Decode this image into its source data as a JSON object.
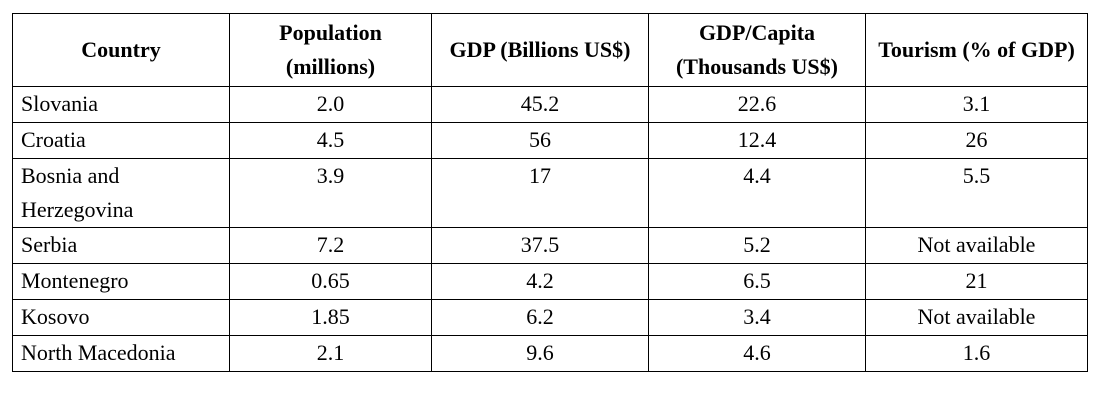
{
  "table": {
    "headers": [
      "Country",
      "Population (millions)",
      "GDP (Billions US$)",
      "GDP/Capita (Thousands US$)",
      "Tourism (% of GDP)"
    ],
    "rows": [
      [
        "Slovania",
        "2.0",
        "45.2",
        "22.6",
        "3.1"
      ],
      [
        "Croatia",
        "4.5",
        "56",
        "12.4",
        "26"
      ],
      [
        "Bosnia and Herzegovina",
        "3.9",
        "17",
        "4.4",
        "5.5"
      ],
      [
        "Serbia",
        "7.2",
        "37.5",
        "5.2",
        "Not available"
      ],
      [
        "Montenegro",
        "0.65",
        "4.2",
        "6.5",
        "21"
      ],
      [
        "Kosovo",
        "1.85",
        "6.2",
        "3.4",
        "Not available"
      ],
      [
        "North Macedonia",
        "2.1",
        "9.6",
        "4.6",
        "1.6"
      ]
    ]
  }
}
